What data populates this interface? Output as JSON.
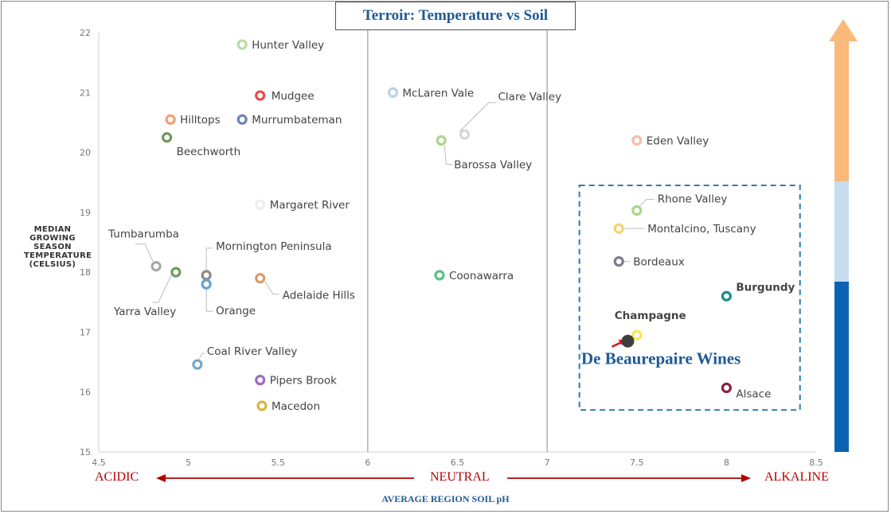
{
  "chart_data": {
    "type": "scatter",
    "title": "Terroir: Temperature vs Soil",
    "xlabel": "AVERAGE REGION SOIL pH",
    "ylabel": [
      "MEDIAN",
      "GROWING",
      "SEASON",
      "TEMPERATURE",
      "(CELSIUS)"
    ],
    "xlim": [
      4.5,
      8.5
    ],
    "ylim": [
      15,
      22
    ],
    "x_ticks": [
      "4.5",
      "5",
      "5.5",
      "6",
      "6.5",
      "7",
      "7.5",
      "8",
      "8.5"
    ],
    "y_ticks": [
      "15",
      "16",
      "17",
      "18",
      "19",
      "20",
      "21",
      "22"
    ],
    "grid": "vertical lines at pH 6 and 7",
    "axis_words": {
      "left": "ACIDIC",
      "center": "NEUTRAL",
      "right": "ALKALINE"
    },
    "points": [
      {
        "label": "Hunter Valley",
        "x": 5.3,
        "y": 21.8,
        "color": "#b9dca0"
      },
      {
        "label": "Mudgee",
        "x": 5.4,
        "y": 20.95,
        "color": "#e84c4c"
      },
      {
        "label": "Hilltops",
        "x": 4.9,
        "y": 20.55,
        "color": "#f0a070"
      },
      {
        "label": "Murrumbateman",
        "x": 5.3,
        "y": 20.55,
        "color": "#6a85b5"
      },
      {
        "label": "Beechworth",
        "x": 4.88,
        "y": 20.25,
        "color": "#6d9a5e"
      },
      {
        "label": "McLaren Vale",
        "x": 6.14,
        "y": 21.0,
        "color": "#b8d3ea"
      },
      {
        "label": "Clare Valley",
        "x": 6.54,
        "y": 20.3,
        "color": "#d6d6d6"
      },
      {
        "label": "Barossa Valley",
        "x": 6.41,
        "y": 20.2,
        "color": "#aed58a"
      },
      {
        "label": "Eden Valley",
        "x": 7.5,
        "y": 20.2,
        "color": "#f5bfa5"
      },
      {
        "label": "Margaret River",
        "x": 5.4,
        "y": 19.13,
        "color": "#ededed"
      },
      {
        "label": "Tumbarumba",
        "x": 4.82,
        "y": 18.1,
        "color": "#a8a8a8"
      },
      {
        "label": "Yarra Valley",
        "x": 4.93,
        "y": 18.0,
        "color": "#6d9a5e"
      },
      {
        "label": "Mornington Peninsula",
        "x": 5.1,
        "y": 17.95,
        "color": "#8c8c8c"
      },
      {
        "label": "Orange",
        "x": 5.1,
        "y": 17.8,
        "color": "#6aa1d3"
      },
      {
        "label": "Adelaide Hills",
        "x": 5.4,
        "y": 17.9,
        "color": "#d99a6a"
      },
      {
        "label": "Coonawarra",
        "x": 6.4,
        "y": 17.95,
        "color": "#5cbf8a"
      },
      {
        "label": "Coal River Valley",
        "x": 5.05,
        "y": 16.46,
        "color": "#7aa6cf"
      },
      {
        "label": "Pipers Brook",
        "x": 5.4,
        "y": 16.2,
        "color": "#a06cc0"
      },
      {
        "label": "Macedon",
        "x": 5.41,
        "y": 15.77,
        "color": "#d9b640"
      },
      {
        "label": "Rhone Valley",
        "x": 7.5,
        "y": 19.03,
        "color": "#aed58a"
      },
      {
        "label": "Montalcino, Tuscany",
        "x": 7.4,
        "y": 18.73,
        "color": "#f5d36b"
      },
      {
        "label": "Bordeaux",
        "x": 7.4,
        "y": 18.18,
        "color": "#7a7f8c"
      },
      {
        "label": "Burgundy",
        "x": 8.0,
        "y": 17.6,
        "color": "#1a8f8a"
      },
      {
        "label": "Champagne",
        "x": 7.5,
        "y": 16.95,
        "color": "#f7e74a"
      },
      {
        "label": "Alsace",
        "x": 8.0,
        "y": 16.07,
        "color": "#8a2340"
      }
    ],
    "highlight": {
      "label": "De Beaurepaire Wines",
      "x": 7.45,
      "y": 16.85,
      "color": "#3f3f3f"
    },
    "gradient_bar": [
      "#f9b97a",
      "#c7dced",
      "#0a62b3"
    ]
  }
}
